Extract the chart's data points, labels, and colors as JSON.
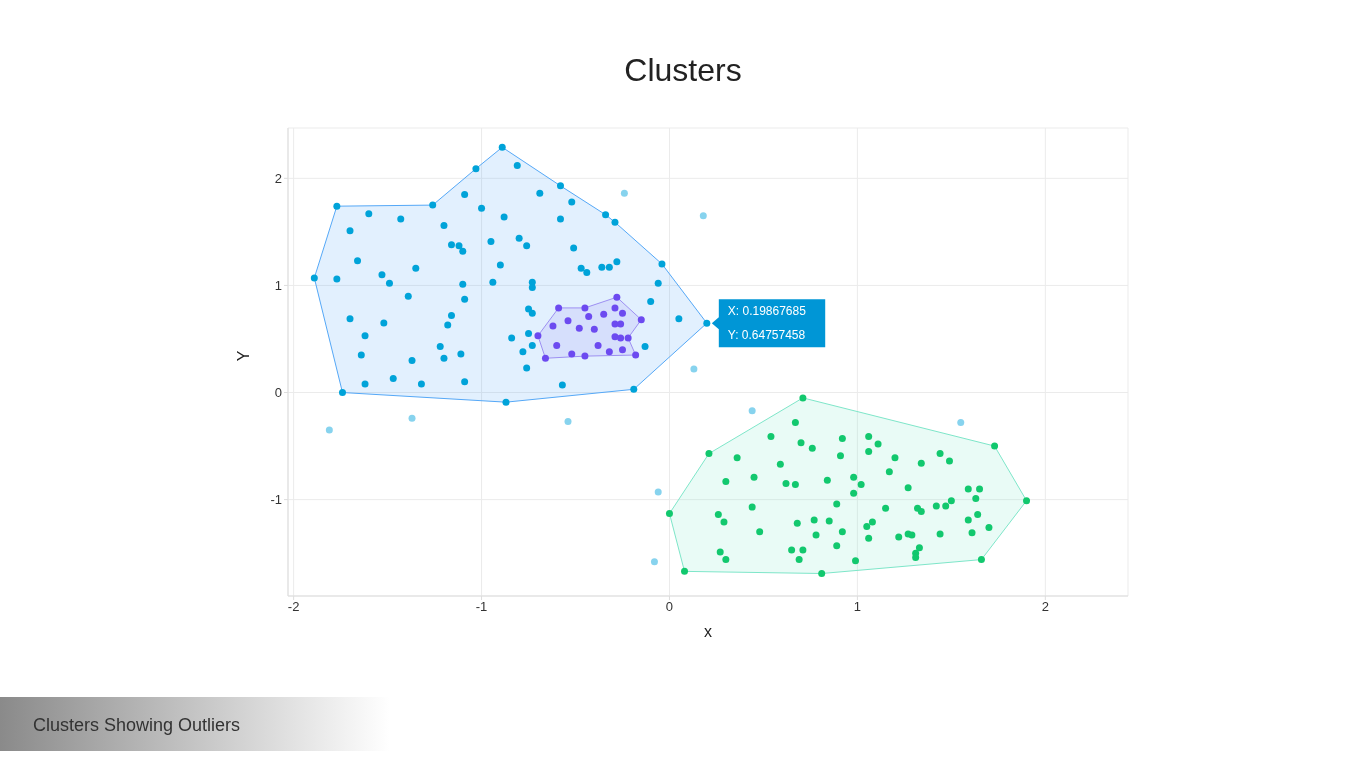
{
  "chart_data": {
    "type": "scatter",
    "title": "Clusters",
    "xlabel": "x",
    "ylabel": "Y",
    "xlim": [
      -2.03,
      2.44
    ],
    "ylim": [
      -1.9,
      2.47
    ],
    "xticks": [
      -2,
      -1,
      0,
      1,
      2
    ],
    "yticks": [
      -1,
      0,
      1,
      2
    ],
    "grid": true,
    "marker": "circle",
    "series": [
      {
        "type": "area",
        "marker": "none",
        "color": "#55a8f7",
        "x": [
          -1.89,
          -1.77,
          -1.26,
          -1.03,
          -0.89,
          -0.58,
          -0.34,
          -0.29,
          -0.04,
          0.19867685,
          -0.19,
          -0.87,
          -1.74,
          -1.89
        ],
        "values": [
          1.07,
          1.74,
          1.75,
          2.09,
          2.29,
          1.93,
          1.66,
          1.59,
          1.2,
          0.64757458,
          0.03,
          -0.09,
          0.0,
          1.07
        ]
      },
      {
        "type": "area",
        "marker": "none",
        "color": "#7ee6c9",
        "x": [
          0.0,
          0.21,
          0.71,
          1.73,
          1.9,
          1.66,
          0.81,
          0.08,
          0.0
        ],
        "values": [
          -1.13,
          -0.57,
          -0.05,
          -0.5,
          -1.01,
          -1.56,
          -1.69,
          -1.67,
          -1.13
        ]
      },
      {
        "type": "area",
        "marker": "none",
        "color": "#9d8ff2",
        "x": [
          -0.7,
          -0.59,
          -0.45,
          -0.28,
          -0.15,
          -0.22,
          -0.18,
          -0.45,
          -0.66,
          -0.7
        ],
        "values": [
          0.53,
          0.79,
          0.79,
          0.89,
          0.68,
          0.51,
          0.35,
          0.34,
          0.32,
          0.53
        ]
      },
      {
        "color": "#00a3d9",
        "x": [
          -1.77,
          -1.26,
          -1.03,
          -1.09,
          -1.6,
          -1.43,
          -1.7,
          -1.2,
          -1.16,
          -1.12,
          -1.1,
          -1.66,
          -1.89,
          -1.77,
          -1.53,
          -1.49,
          -1.35,
          -1.1,
          -1.09,
          -1.39,
          -1.7,
          -1.52,
          -1.16,
          -1.18,
          -1.62,
          -1.64,
          -1.37,
          -1.22,
          -1.2,
          -1.11,
          -1.62,
          -1.47,
          -1.32,
          -1.09,
          -1.74,
          -0.89,
          -0.81,
          -0.58,
          -0.69,
          -0.52,
          -1.0,
          -0.88,
          -0.58,
          -0.34,
          -0.29,
          -0.95,
          -0.8,
          -0.76,
          -0.51,
          -0.9,
          -0.47,
          -0.44,
          -0.36,
          -0.32,
          -0.28,
          -0.04,
          -0.94,
          -0.73,
          -0.73,
          -0.06,
          -0.1,
          -0.75,
          -0.73,
          0.05,
          0.19867685,
          -0.84,
          -0.75,
          -0.73,
          -0.78,
          -0.76,
          -0.13,
          -0.57,
          -0.19,
          -0.87
        ],
        "values": [
          1.74,
          1.75,
          2.09,
          1.85,
          1.67,
          1.62,
          1.51,
          1.56,
          1.38,
          1.37,
          1.32,
          1.23,
          1.07,
          1.06,
          1.1,
          1.02,
          1.16,
          1.01,
          0.87,
          0.9,
          0.69,
          0.65,
          0.72,
          0.63,
          0.53,
          0.35,
          0.3,
          0.43,
          0.32,
          0.36,
          0.08,
          0.13,
          0.08,
          0.1,
          0.0,
          2.29,
          2.12,
          1.93,
          1.86,
          1.78,
          1.72,
          1.64,
          1.62,
          1.66,
          1.59,
          1.41,
          1.44,
          1.37,
          1.35,
          1.19,
          1.16,
          1.12,
          1.17,
          1.17,
          1.22,
          1.2,
          1.03,
          1.03,
          0.98,
          1.02,
          0.85,
          0.78,
          0.74,
          0.69,
          0.64757458,
          0.51,
          0.55,
          0.44,
          0.38,
          0.23,
          0.43,
          0.07,
          0.03,
          -0.09
        ]
      },
      {
        "color": "#6c4af0",
        "x": [
          -0.59,
          -0.45,
          -0.28,
          -0.15,
          -0.22,
          -0.18,
          -0.45,
          -0.66,
          -0.7,
          -0.29,
          -0.25,
          -0.54,
          -0.43,
          -0.35,
          -0.62,
          -0.48,
          -0.4,
          -0.29,
          -0.26,
          -0.29,
          -0.26,
          -0.6,
          -0.38,
          -0.52,
          -0.32,
          -0.25
        ],
        "values": [
          0.79,
          0.79,
          0.89,
          0.68,
          0.51,
          0.35,
          0.34,
          0.32,
          0.53,
          0.79,
          0.74,
          0.67,
          0.71,
          0.73,
          0.62,
          0.6,
          0.59,
          0.64,
          0.64,
          0.52,
          0.51,
          0.44,
          0.44,
          0.36,
          0.38,
          0.4
        ]
      },
      {
        "color": "#12c86e",
        "x": [
          0.71,
          0.21,
          0.0,
          0.08,
          0.81,
          0.67,
          0.54,
          0.7,
          0.76,
          0.92,
          0.91,
          0.36,
          0.59,
          0.3,
          0.45,
          0.62,
          0.67,
          0.84,
          0.26,
          0.29,
          0.44,
          0.89,
          0.48,
          0.68,
          0.77,
          0.85,
          0.78,
          0.92,
          0.89,
          0.27,
          0.3,
          0.65,
          0.71,
          0.69,
          1.73,
          1.9,
          1.66,
          1.06,
          1.11,
          1.06,
          1.2,
          1.44,
          1.49,
          1.34,
          1.17,
          0.98,
          1.02,
          0.98,
          1.27,
          1.59,
          1.65,
          1.63,
          1.15,
          1.32,
          1.34,
          1.42,
          1.47,
          1.5,
          1.64,
          1.59,
          1.7,
          1.61,
          1.05,
          1.08,
          1.06,
          1.22,
          1.27,
          1.29,
          1.44,
          1.33,
          1.31,
          1.31,
          0.99
        ],
        "values": [
          -0.05,
          -0.57,
          -1.13,
          -1.67,
          -1.69,
          -0.28,
          -0.41,
          -0.47,
          -0.52,
          -0.43,
          -0.59,
          -0.61,
          -0.67,
          -0.83,
          -0.79,
          -0.85,
          -0.86,
          -0.82,
          -1.14,
          -1.21,
          -1.07,
          -1.04,
          -1.3,
          -1.22,
          -1.19,
          -1.2,
          -1.33,
          -1.3,
          -1.43,
          -1.49,
          -1.56,
          -1.47,
          -1.47,
          -1.56,
          -0.5,
          -1.01,
          -1.56,
          -0.41,
          -0.48,
          -0.55,
          -0.61,
          -0.57,
          -0.64,
          -0.66,
          -0.74,
          -0.79,
          -0.86,
          -0.94,
          -0.89,
          -0.9,
          -0.9,
          -0.99,
          -1.08,
          -1.08,
          -1.11,
          -1.06,
          -1.06,
          -1.01,
          -1.14,
          -1.19,
          -1.26,
          -1.31,
          -1.25,
          -1.21,
          -1.36,
          -1.35,
          -1.32,
          -1.33,
          -1.32,
          -1.45,
          -1.5,
          -1.54,
          -1.57
        ]
      },
      {
        "color": "#87d3ee",
        "x": [
          -1.37,
          -1.81,
          -0.24,
          0.18,
          0.13,
          -0.54,
          0.44,
          -0.06,
          -0.08,
          1.55
        ],
        "values": [
          -0.24,
          -0.35,
          1.86,
          1.65,
          0.22,
          -0.27,
          -0.17,
          -0.93,
          -1.58,
          -0.28
        ]
      }
    ],
    "annotations": [
      {
        "text": "X: 0.19867685\nY: 0.64757458",
        "x": 0.19867685,
        "y": 0.64757458
      },
      "Clusters Showing Outliers"
    ]
  }
}
